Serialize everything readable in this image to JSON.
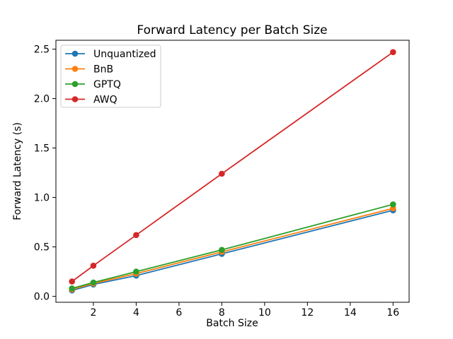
{
  "chart_data": {
    "type": "line",
    "title": "Forward Latency per Batch Size",
    "xlabel": "Batch Size",
    "ylabel": "Forward Latency (s)",
    "x": [
      1,
      2,
      4,
      8,
      16
    ],
    "series": [
      {
        "name": "Unquantized",
        "color": "#1f77b4",
        "values": [
          0.06,
          0.12,
          0.21,
          0.43,
          0.87
        ]
      },
      {
        "name": "BnB",
        "color": "#ff7f0e",
        "values": [
          0.07,
          0.13,
          0.23,
          0.45,
          0.89
        ]
      },
      {
        "name": "GPTQ",
        "color": "#2ca02c",
        "values": [
          0.08,
          0.14,
          0.25,
          0.47,
          0.93
        ]
      },
      {
        "name": "AWQ",
        "color": "#d62728",
        "values": [
          0.15,
          0.31,
          0.62,
          1.24,
          2.47
        ]
      }
    ],
    "xlim": [
      0.25,
      16.75
    ],
    "ylim": [
      -0.06,
      2.59
    ],
    "xticks": {
      "values": [
        2,
        4,
        6,
        8,
        10,
        12,
        14,
        16
      ],
      "labels": [
        "2",
        "4",
        "6",
        "8",
        "10",
        "12",
        "14",
        "16"
      ]
    },
    "yticks": {
      "values": [
        0.0,
        0.5,
        1.0,
        1.5,
        2.0,
        2.5
      ],
      "labels": [
        "0.0",
        "0.5",
        "1.0",
        "1.5",
        "2.0",
        "2.5"
      ]
    },
    "legend": {
      "position": "upper-left",
      "entries": [
        "Unquantized",
        "BnB",
        "GPTQ",
        "AWQ"
      ]
    },
    "grid": false,
    "marker": "circle",
    "axis_color": "#000000",
    "legend_border_color": "#cccccc",
    "background": "#ffffff"
  }
}
